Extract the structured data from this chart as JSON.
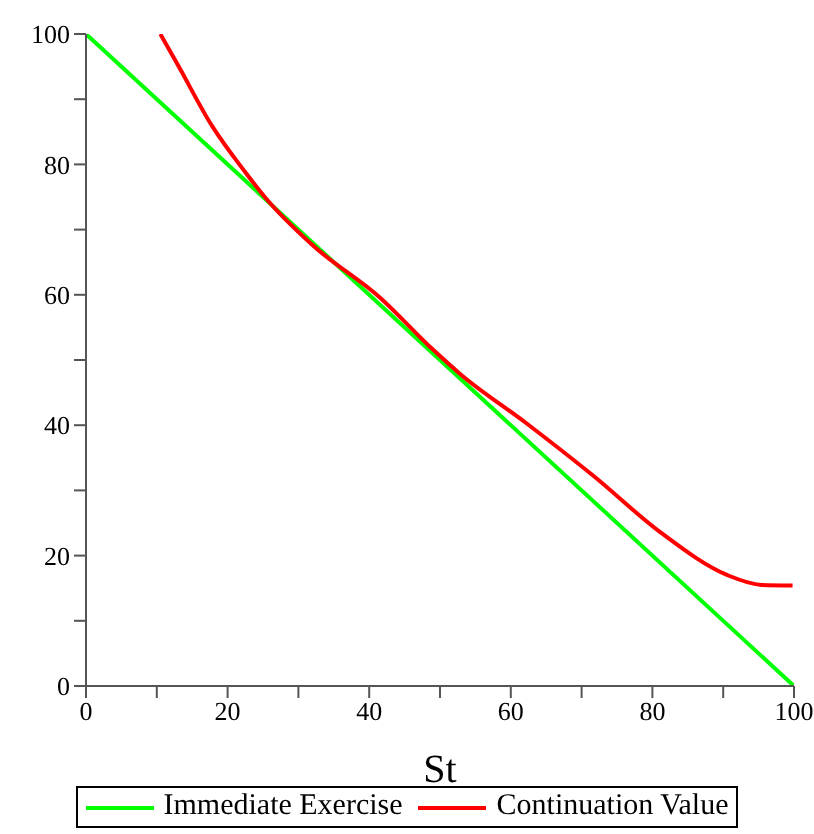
{
  "chart_data": {
    "type": "line",
    "xlabel": "St",
    "xlim": [
      0,
      100
    ],
    "ylim": [
      0,
      100
    ],
    "xticks": [
      0,
      {
        "value": 10,
        "label": null
      },
      20,
      {
        "value": 30,
        "label": null
      },
      40,
      {
        "value": 50,
        "label": null
      },
      60,
      {
        "value": 70,
        "label": null
      },
      80,
      {
        "value": 90,
        "label": null
      },
      100
    ],
    "yticks": [
      0,
      {
        "value": 10,
        "label": null
      },
      20,
      {
        "value": 30,
        "label": null
      },
      40,
      {
        "value": 50,
        "label": null
      },
      60,
      {
        "value": 70,
        "label": null
      },
      80,
      {
        "value": 90,
        "label": null
      },
      100
    ],
    "grid": false,
    "legend": "bottom",
    "marker": "none",
    "line_style": "solid",
    "series": [
      {
        "name": "Immediate Exercise",
        "color": "#00ff00",
        "x": [
          0,
          100
        ],
        "values": [
          100,
          0
        ]
      },
      {
        "name": "Continuation Value",
        "color": "#ff0000",
        "x": [
          10.5,
          13.1,
          17.8,
          22.5,
          25.4,
          31.9,
          41.5,
          49,
          52.8,
          62.2,
          71.7,
          81.1,
          90.6,
          95.4,
          99.8
        ],
        "values": [
          100,
          95,
          85.9,
          78.8,
          74.8,
          67.7,
          59.6,
          51.6,
          47.9,
          40.3,
          32.2,
          23.6,
          17,
          15.5,
          15.4
        ]
      }
    ]
  }
}
